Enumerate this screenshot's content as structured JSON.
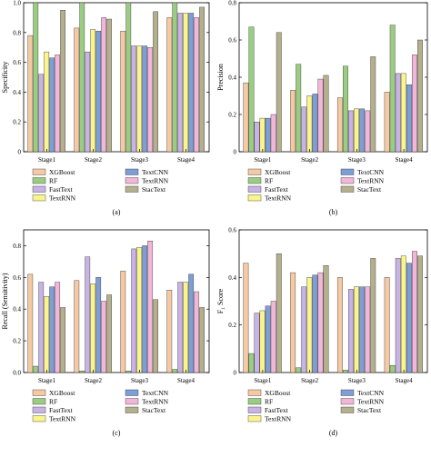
{
  "colors": {
    "XGBoost": "#F5C9A3",
    "RF": "#9ACD82",
    "FastText": "#C7B3E5",
    "TextRNN": "#FAF48C",
    "TextCNN": "#7E9ED6",
    "StacText": "#B4B08E",
    "TextRNN_pink": "#F2B6D8"
  },
  "chart_data": [
    {
      "type": "bar",
      "caption": "(a)",
      "ylabel": "Specificity",
      "ylim": [
        0,
        1.0
      ],
      "yticks": [
        "0",
        "0.2",
        "0.4",
        "0.6",
        "0.8",
        "1.0"
      ],
      "categories": [
        "Stage1",
        "Stage2",
        "Stage3",
        "Stage4"
      ],
      "legend": [
        "XGBoost",
        "RF",
        "FastText",
        "TextRNN",
        "TextCNN",
        "TextRNN",
        "StacText"
      ],
      "series": [
        {
          "name": "XGBoost",
          "values": [
            0.78,
            0.83,
            0.81,
            0.9
          ]
        },
        {
          "name": "RF",
          "values": [
            1.0,
            1.0,
            1.0,
            1.0
          ]
        },
        {
          "name": "FastText",
          "values": [
            0.52,
            0.67,
            0.71,
            0.93
          ]
        },
        {
          "name": "TextRNN",
          "values": [
            0.67,
            0.82,
            0.71,
            0.93
          ]
        },
        {
          "name": "TextCNN",
          "values": [
            0.63,
            0.81,
            0.71,
            0.93
          ]
        },
        {
          "name": "TextRNN",
          "values": [
            0.65,
            0.9,
            0.7,
            0.9
          ]
        },
        {
          "name": "StacText",
          "values": [
            0.95,
            0.89,
            0.94,
            0.97
          ]
        }
      ]
    },
    {
      "type": "bar",
      "caption": "(b)",
      "ylabel": "Precision",
      "ylim": [
        0,
        0.8
      ],
      "yticks": [
        "0",
        "0.2",
        "0.4",
        "0.6",
        "0.8"
      ],
      "categories": [
        "Stage1",
        "Stage2",
        "Stage3",
        "Stage4"
      ],
      "legend": [
        "XGBoost",
        "RF",
        "FastText",
        "TextRNN",
        "TextCNN",
        "TextRNN",
        "StacText"
      ],
      "series": [
        {
          "name": "XGBoost",
          "values": [
            0.37,
            0.33,
            0.29,
            0.32
          ]
        },
        {
          "name": "RF",
          "values": [
            0.67,
            0.47,
            0.46,
            0.68
          ]
        },
        {
          "name": "FastText",
          "values": [
            0.16,
            0.24,
            0.22,
            0.42
          ]
        },
        {
          "name": "TextRNN",
          "values": [
            0.18,
            0.3,
            0.23,
            0.42
          ]
        },
        {
          "name": "TextCNN",
          "values": [
            0.18,
            0.31,
            0.23,
            0.36
          ]
        },
        {
          "name": "TextRNN",
          "values": [
            0.2,
            0.39,
            0.22,
            0.52
          ]
        },
        {
          "name": "StacText",
          "values": [
            0.64,
            0.41,
            0.51,
            0.6
          ]
        }
      ]
    },
    {
      "type": "bar",
      "caption": "(c)",
      "ylabel": "Recall (Sensitivity)",
      "ylim": [
        0,
        0.9
      ],
      "yticks": [
        "0.0",
        "0.2",
        "0.4",
        "0.6",
        "0.8"
      ],
      "categories": [
        "Stage1",
        "Stage2",
        "Stage3",
        "Stage4"
      ],
      "legend": [
        "XGBoost",
        "RF",
        "FastText",
        "TextRNN",
        "TextCNN",
        "TextRNN",
        "StacText"
      ],
      "series": [
        {
          "name": "XGBoost",
          "values": [
            0.62,
            0.58,
            0.64,
            0.52
          ]
        },
        {
          "name": "RF",
          "values": [
            0.04,
            0.01,
            0.01,
            0.02
          ]
        },
        {
          "name": "FastText",
          "values": [
            0.57,
            0.73,
            0.78,
            0.57
          ]
        },
        {
          "name": "TextRNN",
          "values": [
            0.48,
            0.56,
            0.79,
            0.57
          ]
        },
        {
          "name": "TextCNN",
          "values": [
            0.54,
            0.6,
            0.8,
            0.62
          ]
        },
        {
          "name": "TextRNN",
          "values": [
            0.57,
            0.45,
            0.83,
            0.51
          ]
        },
        {
          "name": "StacText",
          "values": [
            0.41,
            0.49,
            0.46,
            0.41
          ]
        }
      ]
    },
    {
      "type": "bar",
      "caption": "(d)",
      "ylabel": "F1 Score",
      "ylim": [
        0,
        0.6
      ],
      "yticks": [
        "0",
        "0.2",
        "0.4",
        "0.6"
      ],
      "categories": [
        "Stage1",
        "Stage2",
        "Stage3",
        "Stage4"
      ],
      "legend": [
        "XGBoost",
        "RF",
        "FastText",
        "TextRNN",
        "TextCNN",
        "TextRNN",
        "StacText"
      ],
      "series": [
        {
          "name": "XGBoost",
          "values": [
            0.46,
            0.42,
            0.4,
            0.4
          ]
        },
        {
          "name": "RF",
          "values": [
            0.08,
            0.02,
            0.01,
            0.03
          ]
        },
        {
          "name": "FastText",
          "values": [
            0.25,
            0.36,
            0.35,
            0.48
          ]
        },
        {
          "name": "TextRNN",
          "values": [
            0.26,
            0.4,
            0.36,
            0.49
          ]
        },
        {
          "name": "TextCNN",
          "values": [
            0.28,
            0.41,
            0.36,
            0.46
          ]
        },
        {
          "name": "TextRNN",
          "values": [
            0.3,
            0.42,
            0.36,
            0.51
          ]
        },
        {
          "name": "StacText",
          "values": [
            0.5,
            0.45,
            0.48,
            0.49
          ]
        }
      ]
    }
  ]
}
